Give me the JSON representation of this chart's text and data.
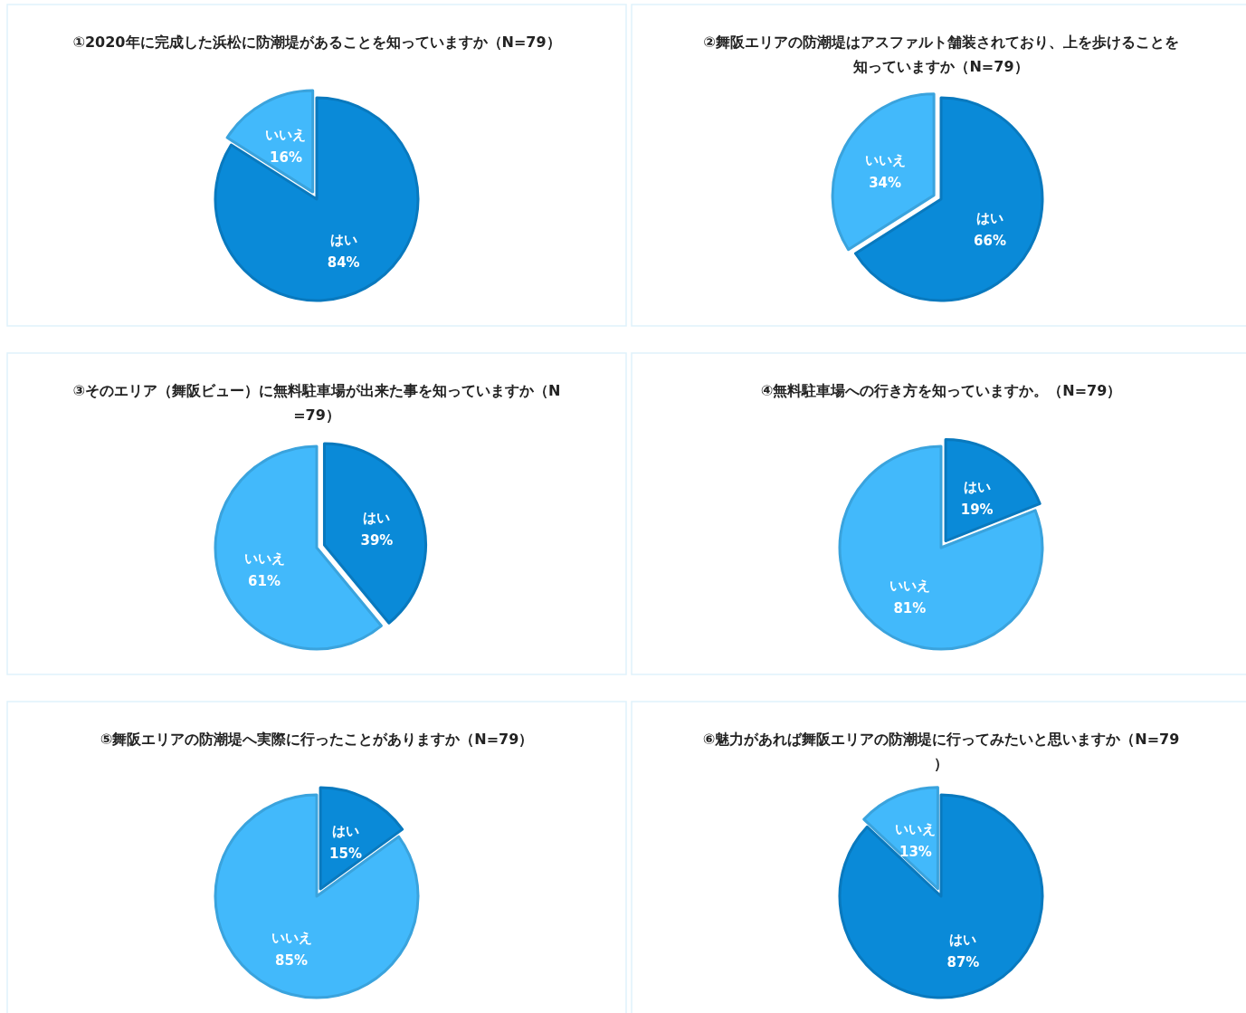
{
  "chart_data": [
    {
      "type": "pie",
      "title": "①2020年に完成した浜松に防潮堤があることを知っていますか（N=79）",
      "categories": [
        "はい",
        "いいえ"
      ],
      "values": [
        84,
        16
      ],
      "colors": [
        "#0a8ad8",
        "#42b9fb"
      ],
      "value_labels": [
        "84%",
        "16%"
      ]
    },
    {
      "type": "pie",
      "title": "②舞阪エリアの防潮堤はアスファルト舗装されており、上を歩けることを知っていますか（N=79）",
      "categories": [
        "はい",
        "いいえ"
      ],
      "values": [
        66,
        34
      ],
      "colors": [
        "#0a8ad8",
        "#42b9fb"
      ],
      "value_labels": [
        "66%",
        "34%"
      ]
    },
    {
      "type": "pie",
      "title": "③そのエリア（舞阪ビュー）に無料駐車場が出来た事を知っていますか（N=79）",
      "categories": [
        "はい",
        "いいえ"
      ],
      "values": [
        39,
        61
      ],
      "colors": [
        "#0a8ad8",
        "#42b9fb"
      ],
      "value_labels": [
        "39%",
        "61%"
      ]
    },
    {
      "type": "pie",
      "title": "④無料駐車場への行き方を知っていますか。（N=79）",
      "categories": [
        "はい",
        "いいえ"
      ],
      "values": [
        19,
        81
      ],
      "colors": [
        "#0a8ad8",
        "#42b9fb"
      ],
      "value_labels": [
        "19%",
        "81%"
      ]
    },
    {
      "type": "pie",
      "title": "⑤舞阪エリアの防潮堤へ実際に行ったことがありますか（N=79）",
      "categories": [
        "はい",
        "いいえ"
      ],
      "values": [
        15,
        85
      ],
      "colors": [
        "#0a8ad8",
        "#42b9fb"
      ],
      "value_labels": [
        "15%",
        "85%"
      ]
    },
    {
      "type": "pie",
      "title": "⑥魅力があれば舞阪エリアの防潮堤に行ってみたいと思いますか（N=79）",
      "categories": [
        "はい",
        "いいえ"
      ],
      "values": [
        87,
        13
      ],
      "colors": [
        "#0a8ad8",
        "#42b9fb"
      ],
      "value_labels": [
        "87%",
        "13%"
      ]
    }
  ]
}
